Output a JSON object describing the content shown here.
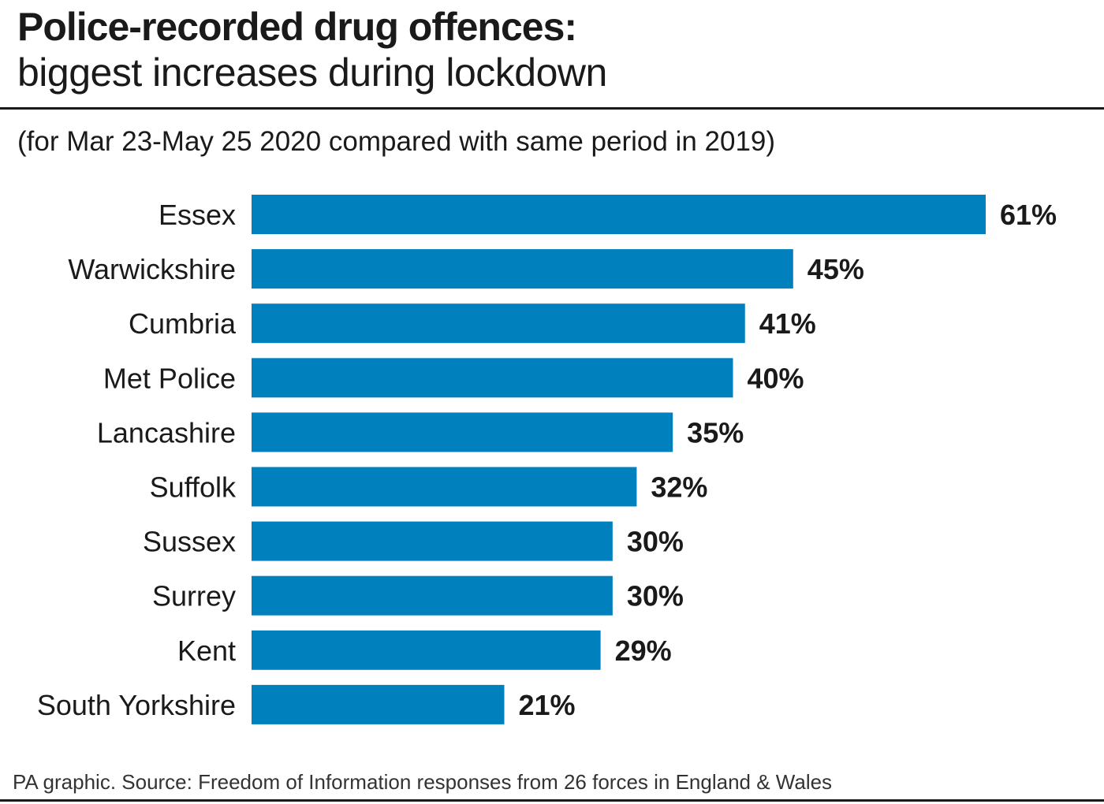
{
  "colors": {
    "bar": "#0080bd",
    "text": "#1a1a1a"
  },
  "chart_data": {
    "type": "bar",
    "orientation": "horizontal",
    "title": "Police-recorded drug offences:",
    "subtitle": "biggest increases during lockdown",
    "note": "(for Mar 23-May 25 2020 compared with same period in 2019)",
    "categories": [
      "Essex",
      "Warwickshire",
      "Cumbria",
      "Met Police",
      "Lancashire",
      "Suffolk",
      "Sussex",
      "Surrey",
      "Kent",
      "South Yorkshire"
    ],
    "values": [
      61,
      45,
      41,
      40,
      35,
      32,
      30,
      30,
      29,
      21
    ],
    "value_labels": [
      "61%",
      "45%",
      "41%",
      "40%",
      "35%",
      "32%",
      "30%",
      "30%",
      "29%",
      "21%"
    ],
    "unit": "%",
    "xlim": [
      0,
      61
    ],
    "grid": false,
    "legend": "none",
    "xlabel": "",
    "ylabel": ""
  },
  "footer": {
    "source": "PA graphic. Source: Freedom of Information responses from 26 forces in England & Wales"
  }
}
